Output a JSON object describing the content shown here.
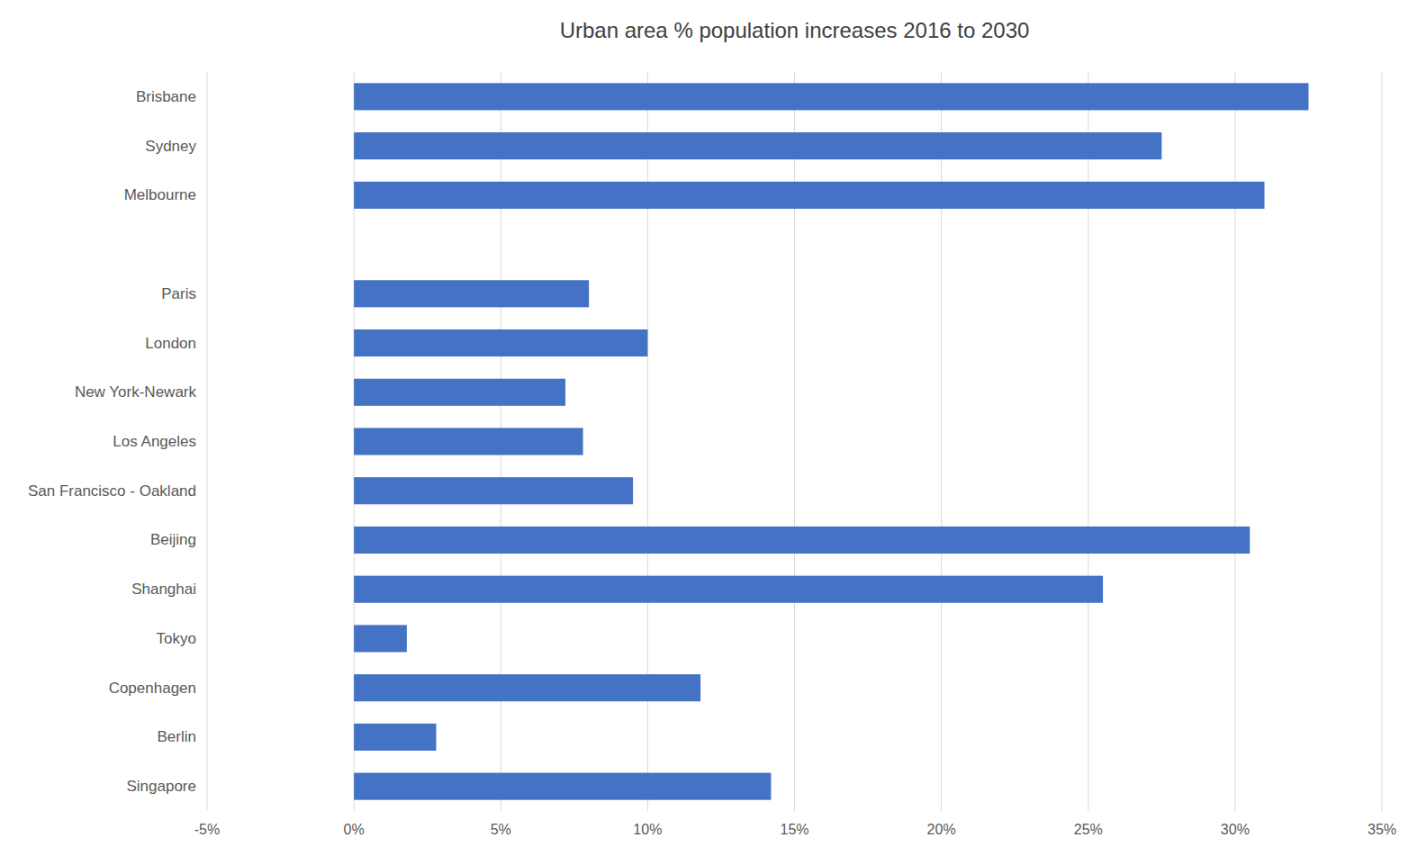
{
  "chart_data": {
    "type": "bar",
    "orientation": "horizontal",
    "title": "Urban area % population increases 2016 to 2030",
    "categories": [
      "Brisbane",
      "Sydney",
      "Melbourne",
      null,
      "Paris",
      "London",
      "New York-Newark",
      "Los Angeles",
      "San Francisco - Oakland",
      "Beijing",
      "Shanghai",
      "Tokyo",
      "Copenhagen",
      "Berlin",
      "Singapore"
    ],
    "values": [
      32.5,
      27.5,
      31.0,
      0,
      8.0,
      10.0,
      7.2,
      7.8,
      9.5,
      30.5,
      25.5,
      1.8,
      11.8,
      2.8,
      14.2
    ],
    "color": "#4472C4",
    "xlim": [
      -5,
      35
    ],
    "xticks": [
      {
        "value": -5,
        "label": "-5%"
      },
      {
        "value": 0,
        "label": "0%"
      },
      {
        "value": 5,
        "label": "5%"
      },
      {
        "value": 10,
        "label": "10%"
      },
      {
        "value": 15,
        "label": "15%"
      },
      {
        "value": 20,
        "label": "20%"
      },
      {
        "value": 25,
        "label": "25%"
      },
      {
        "value": 30,
        "label": "30%"
      },
      {
        "value": 35,
        "label": "35%"
      }
    ],
    "grid": true
  }
}
